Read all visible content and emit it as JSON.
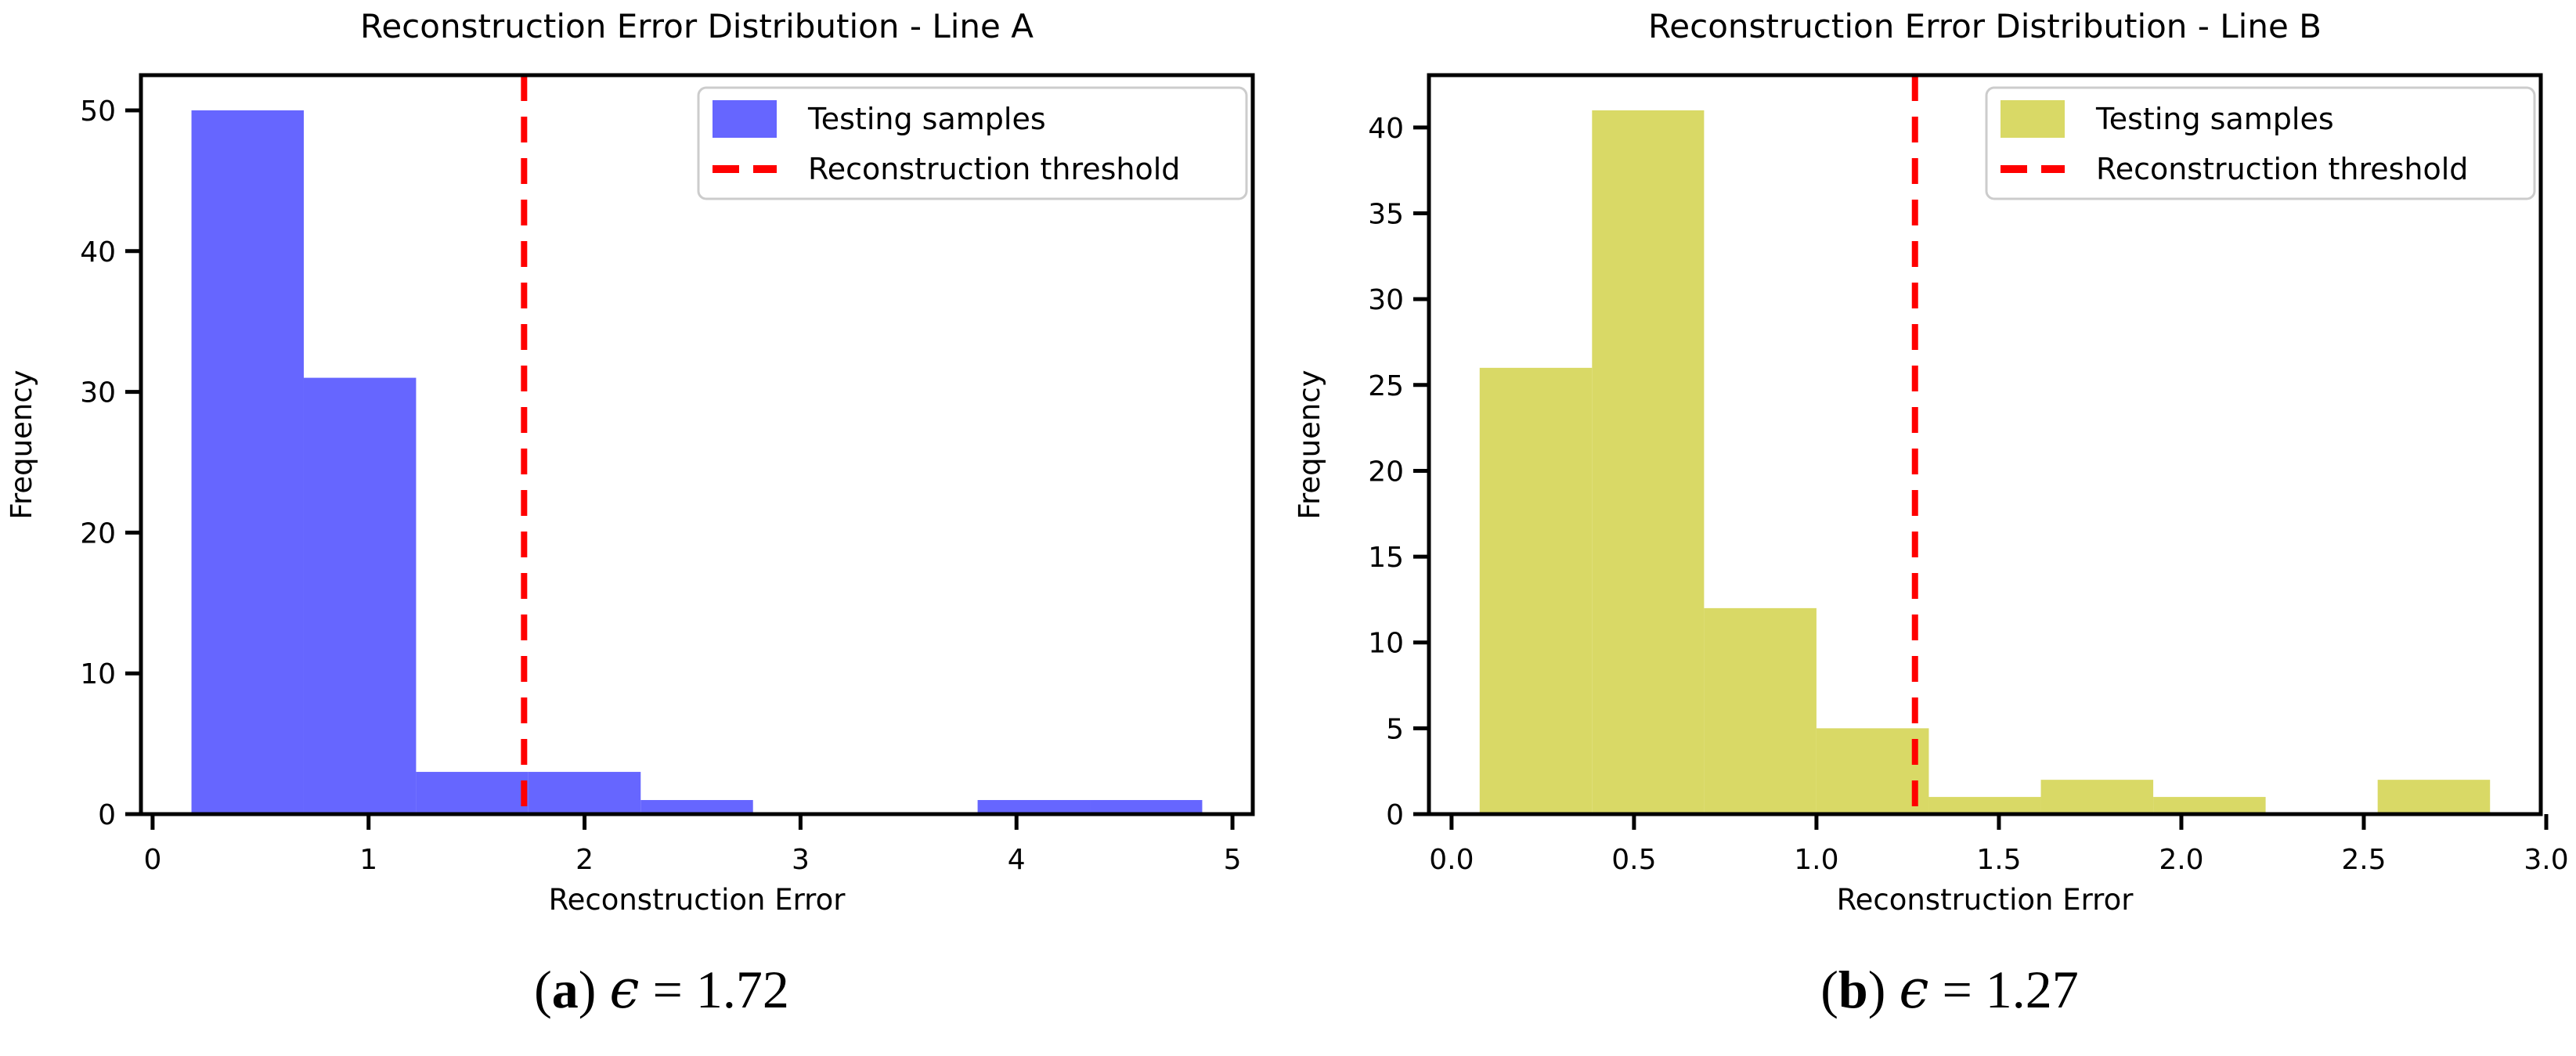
{
  "figure": {
    "background": "#ffffff"
  },
  "chart_data": [
    {
      "type": "bar",
      "subtype": "histogram",
      "panel": "a",
      "title": "Reconstruction Error Distribution - Line A",
      "xlabel": "Reconstruction Error",
      "ylabel": "Frequency",
      "bar_color": "#6666ff",
      "threshold": 1.72,
      "threshold_color": "#ff0000",
      "bin_edges": [
        0.18,
        0.7,
        1.22,
        1.74,
        2.26,
        2.78,
        3.3,
        3.82,
        4.34,
        4.86
      ],
      "counts": [
        50,
        31,
        3,
        3,
        1,
        0,
        0,
        1,
        1
      ],
      "xlim": [
        -0.054,
        5.094
      ],
      "ylim": [
        0,
        52.5
      ],
      "xticks": [
        0,
        1,
        2,
        3,
        4,
        5
      ],
      "xtick_labels": [
        "0",
        "1",
        "2",
        "3",
        "4",
        "5"
      ],
      "yticks": [
        0,
        10,
        20,
        30,
        40,
        50
      ],
      "ytick_labels": [
        "0",
        "10",
        "20",
        "30",
        "40",
        "50"
      ],
      "legend": [
        "Testing samples",
        "Reconstruction threshold"
      ],
      "legend_position": "upper right",
      "grid": false
    },
    {
      "type": "bar",
      "subtype": "histogram",
      "panel": "b",
      "title": "Reconstruction Error Distribution - Line B",
      "xlabel": "Reconstruction Error",
      "ylabel": "Frequency",
      "bar_color": "#d9d966",
      "threshold": 1.27,
      "threshold_color": "#ff0000",
      "bin_edges": [
        0.077,
        0.385,
        0.692,
        1.0,
        1.308,
        1.615,
        1.923,
        2.231,
        2.538,
        2.846
      ],
      "counts": [
        26,
        41,
        12,
        5,
        1,
        2,
        1,
        0,
        2
      ],
      "xlim": [
        -0.062,
        2.985
      ],
      "ylim": [
        0,
        43.05
      ],
      "xticks": [
        0,
        0.5,
        1.0,
        1.5,
        2.0,
        2.5,
        3.0
      ],
      "xtick_labels": [
        "0.0",
        "0.5",
        "1.0",
        "1.5",
        "2.0",
        "2.5",
        "3.0"
      ],
      "yticks": [
        0,
        5,
        10,
        15,
        20,
        25,
        30,
        35,
        40
      ],
      "ytick_labels": [
        "0",
        "5",
        "10",
        "15",
        "20",
        "25",
        "30",
        "35",
        "40"
      ],
      "legend": [
        "Testing samples",
        "Reconstruction threshold"
      ],
      "legend_position": "upper right",
      "grid": false
    }
  ],
  "captions": [
    {
      "open": "(",
      "label": "a",
      "close": ") ",
      "symbol": "ϵ",
      "eq": " = 1.72"
    },
    {
      "open": "(",
      "label": "b",
      "close": ") ",
      "symbol": "ϵ",
      "eq": " = 1.27"
    }
  ]
}
